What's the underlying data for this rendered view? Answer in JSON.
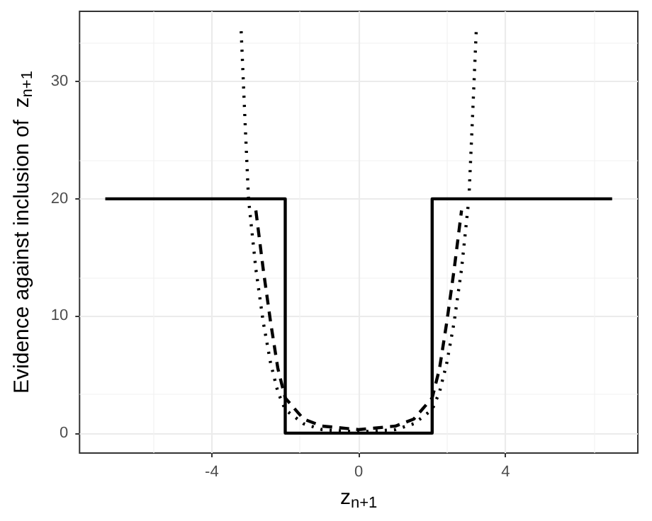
{
  "chart_data": {
    "type": "line",
    "xlabel": "z$_{n+1}$",
    "ylabel": "Evidence against inclusion of  z$_{n+1}$",
    "xlim": [
      -7.6,
      7.6
    ],
    "ylim": [
      -1.7,
      36
    ],
    "xticks": [
      -4,
      0,
      4
    ],
    "yticks": [
      0,
      10,
      20,
      30
    ],
    "grid": true,
    "marker": "none",
    "series": [
      {
        "color": "#000000",
        "line_style": "solid",
        "x": [
          -6.9,
          -2,
          -2,
          2,
          2,
          6.9
        ],
        "values": [
          20,
          20,
          0,
          0,
          20,
          20
        ]
      },
      {
        "color": "#000000",
        "line_style": "dashed",
        "x": [
          -2.8,
          -2.6,
          -2.4,
          -2.2,
          -2,
          -1.5,
          -1,
          0,
          1,
          1.5,
          2,
          2.2,
          2.4,
          2.6,
          2.8
        ],
        "values": [
          19,
          14,
          9.5,
          5.5,
          3,
          1.2,
          0.6,
          0.3,
          0.6,
          1.2,
          3,
          5.5,
          9.5,
          14,
          19
        ]
      },
      {
        "color": "#000000",
        "line_style": "dotted",
        "x": [
          -3.2,
          -3.1,
          -3,
          -2.8,
          -2.6,
          -2.4,
          -2.2,
          -2,
          -1.5,
          -1,
          0,
          1,
          1.5,
          2,
          2.2,
          2.4,
          2.6,
          2.8,
          3,
          3.1,
          3.2
        ],
        "values": [
          34.3,
          27,
          20,
          14,
          9.5,
          6,
          3.5,
          2,
          0.8,
          0.3,
          0.1,
          0.3,
          0.8,
          2,
          3.5,
          6,
          9.5,
          14,
          20,
          27,
          34.3
        ]
      }
    ]
  }
}
